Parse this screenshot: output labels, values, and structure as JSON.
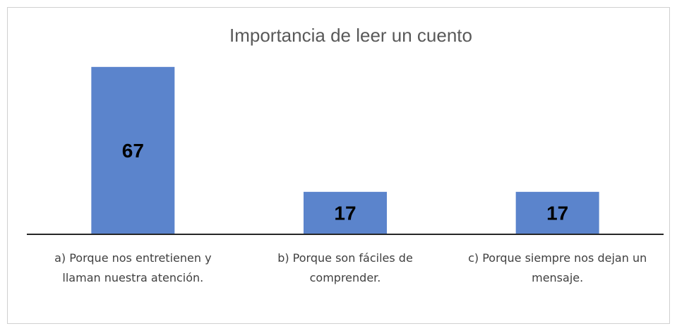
{
  "chart_data": {
    "type": "bar",
    "title": "Importancia de leer un cuento",
    "categories": [
      "a) Porque nos entretienen y llaman nuestra atención.",
      "b) Porque son fáciles de comprender.",
      "c) Porque siempre nos dejan un mensaje."
    ],
    "values": [
      67,
      17,
      17
    ],
    "color": "#5b84cc"
  }
}
